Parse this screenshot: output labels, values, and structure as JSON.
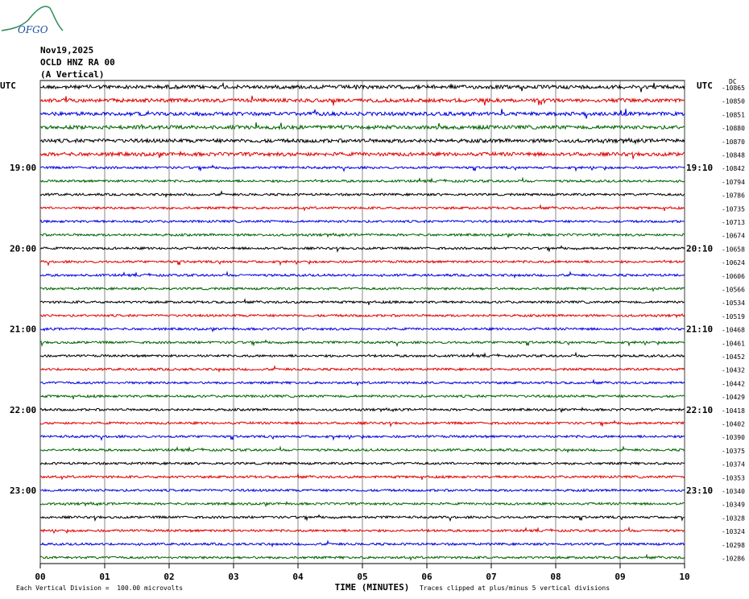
{
  "logo_text": "OFGO",
  "header": {
    "date": "Nov19,2025",
    "station": "OCLD HNZ RA 00",
    "component": "(A Vertical)"
  },
  "chart_data": {
    "type": "line",
    "title": "",
    "left_axis_label": "UTC",
    "right_axis_label": "UTC",
    "right_top_tick_label": "DC",
    "left_time_labels": [
      "19:00",
      "20:00",
      "21:00",
      "22:00",
      "23:00"
    ],
    "right_time_labels": [
      "19:10",
      "20:10",
      "21:10",
      "22:10",
      "23:10"
    ],
    "xlabel": "TIME (MINUTES)",
    "xticks": [
      "00",
      "01",
      "02",
      "03",
      "04",
      "05",
      "06",
      "07",
      "08",
      "09",
      "10"
    ],
    "xlim": [
      0,
      10
    ],
    "trace_colors": [
      "#000000",
      "#e00000",
      "#0000e0",
      "#006400"
    ],
    "dc_offsets": [
      -10865,
      -10850,
      -10851,
      -10880,
      -10870,
      -10848,
      -10842,
      -10794,
      -10786,
      -10735,
      -10713,
      -10674,
      -10658,
      -10624,
      -10606,
      -10566,
      -10534,
      -10519,
      -10468,
      -10461,
      -10452,
      -10432,
      -10442,
      -10429,
      -10418,
      -10402,
      -10390,
      -10375,
      -10374,
      -10353,
      -10340,
      -10349,
      -10328,
      -10324,
      -10298,
      -10286
    ],
    "grid": true,
    "scale_note": "Each Vertical Division =  100.00 microvolts",
    "clip_note": "Traces clipped at plus/minus 5 vertical divisions"
  }
}
